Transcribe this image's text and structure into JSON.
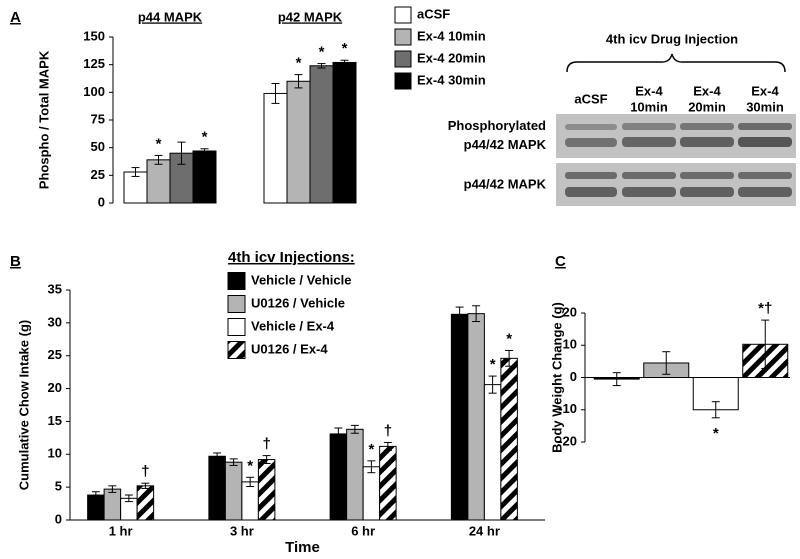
{
  "chart_data": [
    {
      "type": "bar",
      "panel": "A",
      "ylabel": "Phospho  / Total MAPK",
      "categories": [
        "p44 MAPK",
        "p42 MAPK"
      ],
      "series": [
        {
          "name": "aCSF",
          "color": "#ffffff",
          "values": [
            28,
            99
          ],
          "errors": [
            4,
            9
          ],
          "sig": [
            null,
            null
          ]
        },
        {
          "name": "Ex-4 10min",
          "color": "#b4b4b4",
          "values": [
            39,
            110
          ],
          "errors": [
            4,
            6
          ],
          "sig": [
            "*",
            "*"
          ]
        },
        {
          "name": "Ex-4 20min",
          "color": "#6e6e6e",
          "values": [
            45,
            124
          ],
          "errors": [
            10,
            2
          ],
          "sig": [
            null,
            "*"
          ]
        },
        {
          "name": "Ex-4 30min",
          "color": "#000000",
          "values": [
            47,
            127
          ],
          "errors": [
            2,
            2
          ],
          "sig": [
            "*",
            "*"
          ]
        }
      ],
      "ylim": [
        0,
        150
      ],
      "yticks": [
        0,
        25,
        50,
        75,
        100,
        125,
        150
      ]
    },
    {
      "type": "bar",
      "panel": "B",
      "ylabel": "Cumulative Chow Intake (g)",
      "xlabel": "Time",
      "legend_title": "4th icv Injections:",
      "categories": [
        "1 hr",
        "3 hr",
        "6 hr",
        "24 hr"
      ],
      "series": [
        {
          "name": "Vehicle / Vehicle",
          "color": "#000000",
          "values": [
            3.8,
            9.7,
            13.1,
            31.3
          ],
          "errors": [
            0.5,
            0.5,
            0.9,
            1.1
          ],
          "sig": [
            null,
            null,
            null,
            null
          ]
        },
        {
          "name": "U0126 / Vehicle",
          "color": "#b4b4b4",
          "values": [
            4.7,
            8.8,
            13.8,
            31.4
          ],
          "errors": [
            0.5,
            0.5,
            0.6,
            1.2
          ],
          "sig": [
            null,
            null,
            null,
            null
          ]
        },
        {
          "name": "Vehicle / Ex-4",
          "color": "#ffffff",
          "values": [
            3.3,
            5.8,
            8.1,
            20.6
          ],
          "errors": [
            0.5,
            0.7,
            0.9,
            1.3
          ],
          "sig": [
            null,
            "*",
            "*",
            "*"
          ]
        },
        {
          "name": "U0126 / Ex-4",
          "color": "#000000",
          "pattern": "stripes",
          "values": [
            5.2,
            9.2,
            11.2,
            24.6
          ],
          "errors": [
            0.4,
            0.6,
            0.6,
            1.2
          ],
          "sig": [
            "†",
            "†",
            "†",
            "*"
          ]
        }
      ],
      "ylim": [
        0,
        35
      ],
      "yticks": [
        0,
        5,
        10,
        15,
        20,
        25,
        30,
        35
      ]
    },
    {
      "type": "bar",
      "panel": "C",
      "ylabel": "Body Weight Change (g)",
      "categories": [
        null,
        null,
        null,
        null
      ],
      "values": [
        -0.5,
        4.5,
        -10,
        10.3
      ],
      "errors": [
        2,
        3.5,
        2.5,
        7.5
      ],
      "colors": [
        "#000000",
        "#b4b4b4",
        "#ffffff",
        "#000000"
      ],
      "patterns": [
        null,
        null,
        null,
        "stripes"
      ],
      "sig": [
        null,
        null,
        "*",
        "*†"
      ],
      "ylim": [
        -20,
        20
      ],
      "yticks": [
        -20,
        -10,
        0,
        10,
        20
      ]
    }
  ],
  "blot": {
    "title": "4th icv Drug Injection",
    "lanes": [
      [
        "aCSF"
      ],
      [
        "Ex-4",
        "10min"
      ],
      [
        "Ex-4",
        "20min"
      ],
      [
        "Ex-4",
        "30min"
      ]
    ],
    "rows": [
      [
        "Phosphorylated",
        "p44/42 MAPK"
      ],
      [
        "p44/42 MAPK"
      ]
    ]
  }
}
